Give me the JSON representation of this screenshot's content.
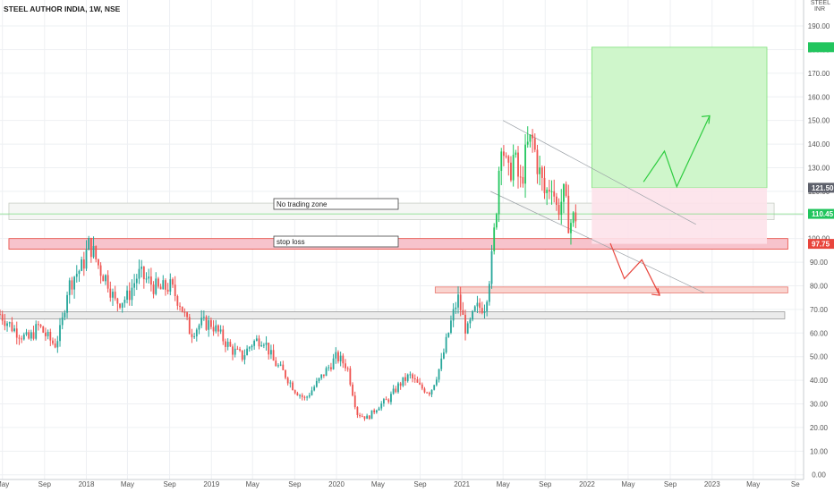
{
  "header": {
    "title": "STEEL AUTHOR INDIA, 1W, NSE"
  },
  "currency": {
    "line1": "STEEL",
    "line2": "INR"
  },
  "colors": {
    "up": "#26a69a",
    "up_bright": "#22c55e",
    "down": "#ef5350",
    "grid": "#eef0f3",
    "axis": "#c9ccd1",
    "target_fill": "#ccf5c8",
    "target_stroke": "#7ee07a",
    "stop_fill": "#fde2ea",
    "red_line": "#e8453c",
    "green_line": "#2ecc40",
    "grey_zone": "#e9e9e9"
  },
  "annotations": {
    "no_trade": "No trading zone",
    "stop_loss": "stop loss",
    "price_tag_1": "121.50",
    "price_tag_2": "97.75",
    "current_price": "110.45"
  },
  "chart_data": {
    "type": "candlestick",
    "title": "STEEL AUTHOR INDIA, 1W, NSE",
    "xlabel": "",
    "ylabel": "",
    "x_range": [
      "2017-04-24",
      "2023-09-25"
    ],
    "ylim": [
      -2,
      201
    ],
    "y_ticks": [
      0,
      10,
      20,
      30,
      40,
      50,
      60,
      70,
      80,
      90,
      100,
      110,
      120,
      130,
      140,
      150,
      160,
      170,
      180,
      190
    ],
    "x_ticks": [
      {
        "label": "May",
        "date": "2017-05-01"
      },
      {
        "label": "Sep",
        "date": "2017-09-01"
      },
      {
        "label": "2018",
        "date": "2018-01-01"
      },
      {
        "label": "May",
        "date": "2018-05-01"
      },
      {
        "label": "Sep",
        "date": "2018-09-01"
      },
      {
        "label": "2019",
        "date": "2019-01-01"
      },
      {
        "label": "May",
        "date": "2019-05-01"
      },
      {
        "label": "Sep",
        "date": "2019-09-01"
      },
      {
        "label": "2020",
        "date": "2020-01-01"
      },
      {
        "label": "May",
        "date": "2020-05-01"
      },
      {
        "label": "Sep",
        "date": "2020-09-01"
      },
      {
        "label": "2021",
        "date": "2021-01-01"
      },
      {
        "label": "May",
        "date": "2021-05-01"
      },
      {
        "label": "Sep",
        "date": "2021-09-01"
      },
      {
        "label": "2022",
        "date": "2022-01-01"
      },
      {
        "label": "May",
        "date": "2022-05-01"
      },
      {
        "label": "Sep",
        "date": "2022-09-01"
      },
      {
        "label": "2023",
        "date": "2023-01-01"
      },
      {
        "label": "May",
        "date": "2023-05-01"
      },
      {
        "label": "Se",
        "date": "2023-09-01"
      }
    ],
    "grid": true,
    "closes": [
      {
        "d": "2017-04-24",
        "c": 68
      },
      {
        "d": "2017-06-01",
        "c": 62
      },
      {
        "d": "2017-07-15",
        "c": 57
      },
      {
        "d": "2017-08-15",
        "c": 63
      },
      {
        "d": "2017-09-10",
        "c": 58
      },
      {
        "d": "2017-10-01",
        "c": 55
      },
      {
        "d": "2017-10-20",
        "c": 62
      },
      {
        "d": "2017-11-05",
        "c": 78
      },
      {
        "d": "2017-11-25",
        "c": 84
      },
      {
        "d": "2017-12-20",
        "c": 88
      },
      {
        "d": "2018-01-10",
        "c": 98
      },
      {
        "d": "2018-02-10",
        "c": 87
      },
      {
        "d": "2018-03-05",
        "c": 82
      },
      {
        "d": "2018-03-25",
        "c": 73
      },
      {
        "d": "2018-05-01",
        "c": 75
      },
      {
        "d": "2018-06-01",
        "c": 85
      },
      {
        "d": "2018-07-01",
        "c": 82
      },
      {
        "d": "2018-08-01",
        "c": 78
      },
      {
        "d": "2018-09-01",
        "c": 80
      },
      {
        "d": "2018-10-01",
        "c": 73
      },
      {
        "d": "2018-11-01",
        "c": 60
      },
      {
        "d": "2018-12-01",
        "c": 64
      },
      {
        "d": "2019-01-01",
        "c": 64
      },
      {
        "d": "2019-02-01",
        "c": 58
      },
      {
        "d": "2019-03-01",
        "c": 53
      },
      {
        "d": "2019-04-01",
        "c": 50
      },
      {
        "d": "2019-05-01",
        "c": 56
      },
      {
        "d": "2019-06-01",
        "c": 58
      },
      {
        "d": "2019-07-01",
        "c": 48
      },
      {
        "d": "2019-08-01",
        "c": 43
      },
      {
        "d": "2019-09-01",
        "c": 36
      },
      {
        "d": "2019-10-01",
        "c": 32
      },
      {
        "d": "2019-11-01",
        "c": 38
      },
      {
        "d": "2019-12-01",
        "c": 44
      },
      {
        "d": "2020-01-01",
        "c": 50
      },
      {
        "d": "2020-02-01",
        "c": 46
      },
      {
        "d": "2020-03-01",
        "c": 26
      },
      {
        "d": "2020-04-01",
        "c": 24
      },
      {
        "d": "2020-05-01",
        "c": 29
      },
      {
        "d": "2020-06-01",
        "c": 32
      },
      {
        "d": "2020-07-01",
        "c": 38
      },
      {
        "d": "2020-08-01",
        "c": 42
      },
      {
        "d": "2020-09-01",
        "c": 37
      },
      {
        "d": "2020-10-01",
        "c": 35
      },
      {
        "d": "2020-11-01",
        "c": 47
      },
      {
        "d": "2020-12-01",
        "c": 65
      },
      {
        "d": "2020-12-20",
        "c": 75
      },
      {
        "d": "2021-01-15",
        "c": 60
      },
      {
        "d": "2021-02-10",
        "c": 70
      },
      {
        "d": "2021-03-10",
        "c": 72
      },
      {
        "d": "2021-03-31",
        "c": 93
      },
      {
        "d": "2021-04-15",
        "c": 120
      },
      {
        "d": "2021-04-25",
        "c": 145
      },
      {
        "d": "2021-05-15",
        "c": 125
      },
      {
        "d": "2021-06-01",
        "c": 135
      },
      {
        "d": "2021-06-20",
        "c": 122
      },
      {
        "d": "2021-07-10",
        "c": 138
      },
      {
        "d": "2021-07-25",
        "c": 142
      },
      {
        "d": "2021-08-15",
        "c": 128
      },
      {
        "d": "2021-09-01",
        "c": 118
      },
      {
        "d": "2021-09-20",
        "c": 125
      },
      {
        "d": "2021-10-05",
        "c": 112
      },
      {
        "d": "2021-10-25",
        "c": 118
      },
      {
        "d": "2021-11-10",
        "c": 106
      },
      {
        "d": "2021-12-01",
        "c": 110
      }
    ],
    "zones": [
      {
        "name": "No trading zone",
        "from": 108,
        "to": 115
      },
      {
        "name": "stop loss",
        "from": 95.5,
        "to": 100
      },
      {
        "name": "red zone",
        "from": 77,
        "to": 79.5
      },
      {
        "name": "grey zone",
        "from": 66,
        "to": 69
      }
    ],
    "target": {
      "entry": 121.5,
      "target": 181,
      "stop": 97.75
    },
    "current": 110.45,
    "projection_up": [
      {
        "d": "2022-06-15",
        "v": 124
      },
      {
        "d": "2022-08-15",
        "v": 137
      },
      {
        "d": "2022-09-20",
        "v": 122
      },
      {
        "d": "2022-12-25",
        "v": 152
      }
    ],
    "projection_down": [
      {
        "d": "2022-03-10",
        "v": 98
      },
      {
        "d": "2022-04-20",
        "v": 83
      },
      {
        "d": "2022-06-10",
        "v": 91
      },
      {
        "d": "2022-08-01",
        "v": 76
      }
    ]
  }
}
